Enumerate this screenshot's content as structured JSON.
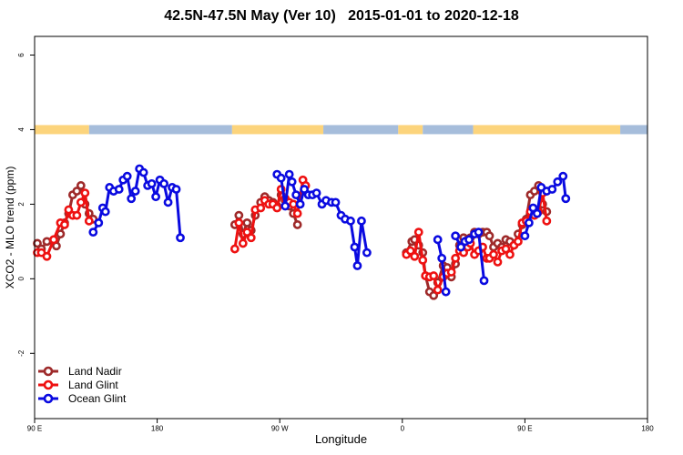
{
  "chart_data": {
    "type": "line",
    "title": "42.5N-47.5N May (Ver 10)   2015-01-01 to 2020-12-18",
    "xlabel": "Longitude",
    "ylabel": "XCO2 - MLO trend (ppm)",
    "xlim": [
      90,
      450
    ],
    "ylim": [
      -3.75,
      6.5
    ],
    "x_tick_labels": [
      "90 E",
      "180",
      "90 W",
      "0",
      "90 E",
      "180"
    ],
    "x_tick_values": [
      90,
      180,
      270,
      360,
      450,
      540
    ],
    "y_tick_labels": [
      "-2",
      "0",
      "2",
      "4",
      "6"
    ],
    "y_tick_values": [
      -2,
      0,
      2,
      4,
      6
    ],
    "grid": false,
    "legend_position": "bottom-left",
    "surface_band": {
      "y": 4,
      "land_color": "#fcd47c",
      "ocean_color": "#a6bddb",
      "segments": [
        {
          "from": 90,
          "to": 130,
          "type": "land"
        },
        {
          "from": 130,
          "to": 235,
          "type": "ocean"
        },
        {
          "from": 235,
          "to": 302,
          "type": "land"
        },
        {
          "from": 302,
          "to": 357,
          "type": "ocean"
        },
        {
          "from": 357,
          "to": 375,
          "type": "land"
        },
        {
          "from": 375,
          "to": 412,
          "type": "ocean"
        },
        {
          "from": 412,
          "to": 520,
          "type": "land"
        },
        {
          "from": 520,
          "to": 540,
          "type": "ocean"
        }
      ]
    },
    "series": [
      {
        "name": "Land Nadir",
        "color": "#9e2a2a",
        "segments": [
          [
            [
              92,
              0.95
            ],
            [
              95,
              0.8
            ],
            [
              99,
              1.0
            ],
            [
              104,
              1.0
            ],
            [
              106,
              0.88
            ],
            [
              109,
              1.2
            ],
            [
              112,
              1.5
            ],
            [
              115,
              1.75
            ],
            [
              118,
              2.25
            ],
            [
              121,
              2.35
            ],
            [
              124,
              2.5
            ],
            [
              127,
              2.0
            ],
            [
              130,
              1.75
            ],
            [
              133,
              1.6
            ]
          ],
          [
            [
              237,
              1.45
            ],
            [
              240,
              1.7
            ],
            [
              243,
              1.2
            ],
            [
              246,
              1.5
            ],
            [
              249,
              1.3
            ],
            [
              252,
              1.7
            ],
            [
              256,
              2.05
            ],
            [
              259,
              2.2
            ],
            [
              262,
              2.1
            ],
            [
              265,
              2.05
            ],
            [
              268,
              1.95
            ],
            [
              271,
              2.25
            ],
            [
              274,
              2.1
            ],
            [
              277,
              1.95
            ],
            [
              280,
              1.75
            ],
            [
              283,
              1.45
            ]
          ],
          [
            [
              363,
              0.7
            ],
            [
              367,
              1.0
            ],
            [
              369,
              1.05
            ],
            [
              372,
              0.9
            ],
            [
              375,
              0.7
            ],
            [
              377,
              0.08
            ],
            [
              380,
              -0.35
            ],
            [
              383,
              -0.45
            ],
            [
              386,
              -0.1
            ],
            [
              390,
              0.35
            ],
            [
              393,
              0.3
            ],
            [
              396,
              0.05
            ],
            [
              399,
              0.4
            ],
            [
              402,
              0.9
            ],
            [
              405,
              1.1
            ],
            [
              408,
              1.05
            ],
            [
              410,
              1.1
            ],
            [
              413,
              1.25
            ],
            [
              416,
              1.2
            ],
            [
              419,
              1.25
            ],
            [
              422,
              1.25
            ],
            [
              424,
              1.15
            ],
            [
              427,
              0.85
            ],
            [
              430,
              0.95
            ],
            [
              433,
              0.85
            ],
            [
              436,
              1.05
            ],
            [
              439,
              1.0
            ],
            [
              442,
              0.9
            ],
            [
              445,
              1.2
            ],
            [
              448,
              1.45
            ],
            [
              451,
              1.6
            ],
            [
              454,
              2.25
            ],
            [
              457,
              2.35
            ],
            [
              460,
              2.5
            ],
            [
              463,
              2.0
            ],
            [
              466,
              1.8
            ]
          ]
        ]
      },
      {
        "name": "Land Glint",
        "color": "#ee1111",
        "segments": [
          [
            [
              92,
              0.7
            ],
            [
              95,
              0.7
            ],
            [
              99,
              0.6
            ],
            [
              104,
              1.05
            ],
            [
              109,
              1.5
            ],
            [
              112,
              1.45
            ],
            [
              115,
              1.85
            ],
            [
              118,
              1.7
            ],
            [
              121,
              1.7
            ],
            [
              124,
              2.05
            ],
            [
              127,
              2.3
            ],
            [
              130,
              1.55
            ]
          ],
          [
            [
              237,
              0.8
            ],
            [
              240,
              1.5
            ],
            [
              243,
              0.95
            ],
            [
              246,
              1.25
            ],
            [
              249,
              1.1
            ],
            [
              252,
              1.85
            ],
            [
              256,
              1.9
            ],
            [
              259,
              2.1
            ],
            [
              262,
              2.0
            ],
            [
              265,
              2.0
            ],
            [
              268,
              1.9
            ],
            [
              271,
              2.4
            ],
            [
              274,
              2.15
            ],
            [
              277,
              2.05
            ],
            [
              280,
              2.0
            ],
            [
              283,
              1.75
            ],
            [
              287,
              2.65
            ],
            [
              289,
              2.5
            ]
          ],
          [
            [
              363,
              0.65
            ],
            [
              366,
              0.75
            ],
            [
              369,
              0.6
            ],
            [
              372,
              1.25
            ],
            [
              375,
              0.5
            ],
            [
              377,
              0.08
            ],
            [
              380,
              0.05
            ],
            [
              383,
              0.08
            ],
            [
              386,
              -0.3
            ],
            [
              390,
              0.05
            ],
            [
              393,
              0.15
            ],
            [
              396,
              0.18
            ],
            [
              399,
              0.55
            ],
            [
              402,
              0.75
            ],
            [
              405,
              0.7
            ],
            [
              408,
              0.85
            ],
            [
              410,
              0.95
            ],
            [
              413,
              0.65
            ],
            [
              416,
              0.75
            ],
            [
              419,
              0.85
            ],
            [
              422,
              0.55
            ],
            [
              424,
              0.55
            ],
            [
              427,
              0.65
            ],
            [
              430,
              0.45
            ],
            [
              433,
              0.75
            ],
            [
              436,
              0.8
            ],
            [
              439,
              0.65
            ],
            [
              442,
              0.9
            ],
            [
              445,
              1.0
            ],
            [
              448,
              1.5
            ],
            [
              451,
              1.55
            ],
            [
              454,
              1.8
            ],
            [
              457,
              1.7
            ],
            [
              460,
              1.8
            ],
            [
              463,
              2.3
            ],
            [
              466,
              1.55
            ]
          ]
        ]
      },
      {
        "name": "Ocean Glint",
        "color": "#0a0ae0",
        "segments": [
          [
            [
              133,
              1.25
            ],
            [
              137,
              1.5
            ],
            [
              140,
              1.9
            ],
            [
              142,
              1.8
            ],
            [
              145,
              2.45
            ],
            [
              148,
              2.35
            ],
            [
              152,
              2.4
            ],
            [
              155,
              2.65
            ],
            [
              158,
              2.75
            ],
            [
              161,
              2.15
            ],
            [
              164,
              2.35
            ],
            [
              167,
              2.95
            ],
            [
              170,
              2.85
            ],
            [
              173,
              2.5
            ],
            [
              176,
              2.55
            ],
            [
              179,
              2.2
            ],
            [
              182,
              2.65
            ],
            [
              185,
              2.55
            ],
            [
              188,
              2.05
            ],
            [
              191,
              2.45
            ],
            [
              194,
              2.4
            ],
            [
              197,
              1.1
            ]
          ],
          [
            [
              268,
              2.8
            ],
            [
              271,
              2.7
            ],
            [
              274,
              1.95
            ],
            [
              277,
              2.8
            ],
            [
              279,
              2.6
            ],
            [
              282,
              2.25
            ],
            [
              285,
              2.0
            ],
            [
              288,
              2.4
            ],
            [
              291,
              2.25
            ],
            [
              294,
              2.25
            ],
            [
              297,
              2.3
            ],
            [
              301,
              2.0
            ],
            [
              304,
              2.1
            ],
            [
              308,
              2.05
            ],
            [
              311,
              2.05
            ],
            [
              315,
              1.7
            ],
            [
              318,
              1.6
            ],
            [
              322,
              1.55
            ],
            [
              325,
              0.85
            ],
            [
              327,
              0.35
            ],
            [
              330,
              1.55
            ],
            [
              334,
              0.7
            ]
          ],
          [
            [
              386,
              1.05
            ],
            [
              389,
              0.55
            ],
            [
              392,
              -0.35
            ]
          ],
          [
            [
              399,
              1.15
            ],
            [
              403,
              0.85
            ],
            [
              406,
              1.0
            ],
            [
              409,
              1.05
            ],
            [
              413,
              1.2
            ],
            [
              416,
              1.25
            ],
            [
              420,
              -0.05
            ]
          ],
          [
            [
              450,
              1.15
            ],
            [
              453,
              1.5
            ],
            [
              456,
              1.9
            ],
            [
              459,
              1.75
            ],
            [
              462,
              2.45
            ],
            [
              466,
              2.35
            ],
            [
              470,
              2.4
            ],
            [
              474,
              2.6
            ],
            [
              478,
              2.75
            ],
            [
              480,
              2.15
            ]
          ]
        ]
      }
    ]
  }
}
